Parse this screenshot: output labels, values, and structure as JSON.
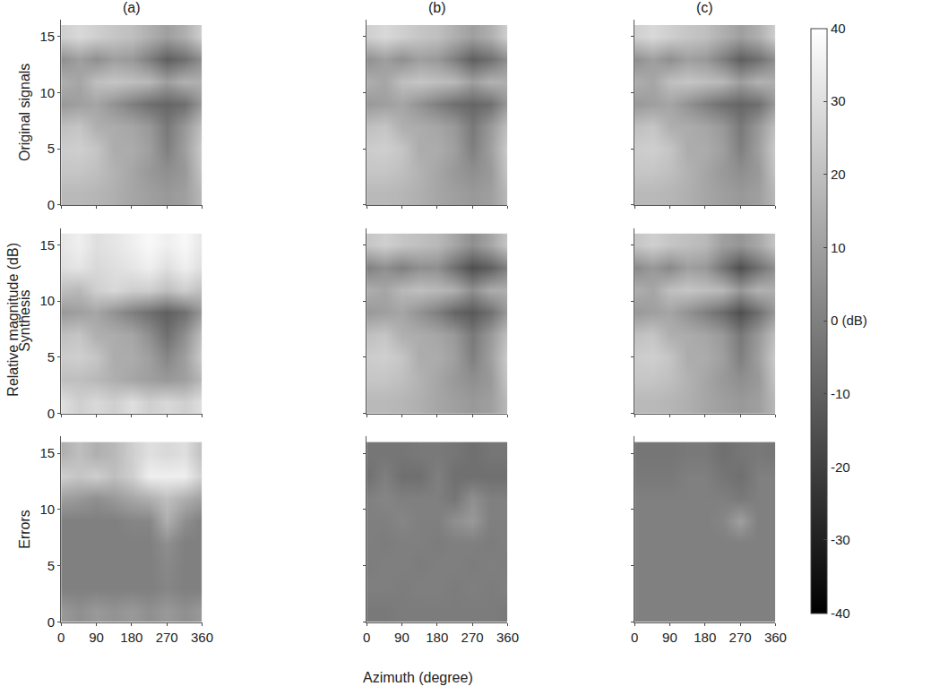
{
  "chart_data": {
    "type": "heatmap",
    "x_label": "Azimuth (degree)",
    "y_label": "Relative magnitude (dB)",
    "columns": [
      "(a)",
      "(b)",
      "(c)"
    ],
    "rows": [
      "Original signals",
      "Synthesis",
      "Errors"
    ],
    "color": "gray",
    "x": [
      0,
      45,
      90,
      135,
      180,
      225,
      270,
      315,
      360
    ],
    "y": [
      1,
      3,
      5,
      7,
      9,
      11,
      13,
      15
    ],
    "xlim": [
      0,
      360
    ],
    "xticks": [
      0,
      90,
      180,
      270,
      360
    ],
    "ylim": [
      0,
      16.5
    ],
    "yticks": [
      0,
      5,
      10,
      15
    ],
    "colorbar_range": [
      -40,
      40
    ],
    "colorbar_ticks": [
      40,
      30,
      20,
      10,
      {
        "value": 0,
        "label": "0 (dB)"
      },
      -10,
      -20,
      -30,
      -40
    ],
    "panels": [
      [
        [
          [
            18,
            18,
            17,
            15,
            12,
            10,
            8,
            10,
            18
          ],
          [
            22,
            22,
            20,
            16,
            12,
            8,
            5,
            8,
            22
          ],
          [
            24,
            25,
            22,
            14,
            14,
            10,
            0,
            10,
            24
          ],
          [
            20,
            22,
            15,
            14,
            12,
            8,
            -2,
            8,
            20
          ],
          [
            8,
            10,
            12,
            6,
            0,
            -5,
            -8,
            -5,
            8
          ],
          [
            15,
            12,
            20,
            22,
            20,
            18,
            10,
            16,
            15
          ],
          [
            5,
            10,
            5,
            10,
            8,
            0,
            -10,
            -5,
            5
          ],
          [
            25,
            28,
            25,
            22,
            20,
            15,
            10,
            15,
            25
          ]
        ],
        [
          [
            18,
            18,
            17,
            15,
            12,
            10,
            8,
            10,
            18
          ],
          [
            22,
            22,
            20,
            16,
            12,
            8,
            5,
            8,
            22
          ],
          [
            24,
            25,
            22,
            14,
            14,
            10,
            0,
            10,
            24
          ],
          [
            20,
            22,
            15,
            14,
            12,
            8,
            -2,
            8,
            20
          ],
          [
            8,
            10,
            12,
            6,
            0,
            -5,
            -8,
            -5,
            8
          ],
          [
            15,
            12,
            20,
            22,
            20,
            18,
            10,
            16,
            15
          ],
          [
            5,
            10,
            5,
            10,
            8,
            0,
            -10,
            -5,
            5
          ],
          [
            25,
            28,
            25,
            22,
            20,
            15,
            10,
            15,
            25
          ]
        ],
        [
          [
            18,
            18,
            17,
            15,
            12,
            10,
            8,
            10,
            18
          ],
          [
            22,
            22,
            20,
            16,
            12,
            8,
            5,
            8,
            22
          ],
          [
            24,
            25,
            22,
            14,
            14,
            10,
            0,
            10,
            24
          ],
          [
            20,
            22,
            15,
            14,
            12,
            8,
            -2,
            8,
            20
          ],
          [
            8,
            10,
            12,
            6,
            0,
            -5,
            -8,
            -5,
            8
          ],
          [
            15,
            12,
            20,
            22,
            20,
            18,
            10,
            16,
            15
          ],
          [
            5,
            10,
            5,
            10,
            8,
            0,
            -10,
            -5,
            5
          ],
          [
            25,
            28,
            25,
            22,
            20,
            15,
            10,
            15,
            25
          ]
        ]
      ],
      [
        [
          [
            30,
            25,
            28,
            25,
            30,
            25,
            28,
            25,
            30
          ],
          [
            20,
            20,
            18,
            15,
            12,
            10,
            8,
            10,
            18
          ],
          [
            24,
            25,
            22,
            14,
            14,
            10,
            2,
            10,
            24
          ],
          [
            20,
            22,
            15,
            14,
            12,
            5,
            -5,
            5,
            20
          ],
          [
            8,
            10,
            12,
            6,
            0,
            -5,
            -10,
            -5,
            8
          ],
          [
            20,
            18,
            25,
            28,
            25,
            25,
            20,
            25,
            20
          ],
          [
            30,
            32,
            28,
            30,
            32,
            35,
            30,
            35,
            30
          ],
          [
            32,
            35,
            30,
            32,
            35,
            38,
            35,
            38,
            32
          ]
        ],
        [
          [
            18,
            18,
            17,
            15,
            12,
            10,
            8,
            10,
            18
          ],
          [
            22,
            22,
            20,
            16,
            12,
            8,
            5,
            8,
            22
          ],
          [
            24,
            25,
            22,
            14,
            14,
            10,
            0,
            10,
            24
          ],
          [
            20,
            22,
            15,
            14,
            12,
            8,
            -2,
            8,
            20
          ],
          [
            8,
            10,
            12,
            6,
            0,
            -8,
            -12,
            -5,
            8
          ],
          [
            15,
            12,
            18,
            20,
            18,
            15,
            5,
            14,
            15
          ],
          [
            0,
            5,
            0,
            5,
            5,
            -5,
            -15,
            -10,
            0
          ],
          [
            22,
            25,
            22,
            20,
            18,
            12,
            5,
            12,
            22
          ]
        ],
        [
          [
            18,
            18,
            17,
            15,
            12,
            10,
            8,
            10,
            18
          ],
          [
            22,
            22,
            20,
            16,
            12,
            8,
            5,
            8,
            22
          ],
          [
            24,
            25,
            22,
            14,
            14,
            10,
            0,
            10,
            24
          ],
          [
            20,
            22,
            15,
            14,
            12,
            8,
            -2,
            8,
            20
          ],
          [
            8,
            10,
            12,
            6,
            0,
            -6,
            -15,
            -5,
            8
          ],
          [
            15,
            12,
            20,
            22,
            20,
            18,
            8,
            16,
            15
          ],
          [
            3,
            8,
            3,
            10,
            8,
            -3,
            -15,
            -5,
            5
          ],
          [
            22,
            25,
            22,
            20,
            18,
            10,
            7,
            13,
            22
          ]
        ]
      ],
      [
        [
          [
            8,
            5,
            8,
            6,
            8,
            5,
            8,
            5,
            8
          ],
          [
            0,
            0,
            0,
            0,
            0,
            0,
            2,
            0,
            0
          ],
          [
            0,
            0,
            0,
            0,
            0,
            0,
            3,
            0,
            0
          ],
          [
            0,
            0,
            0,
            0,
            0,
            0,
            5,
            0,
            0
          ],
          [
            0,
            0,
            0,
            0,
            2,
            2,
            15,
            5,
            0
          ],
          [
            10,
            8,
            5,
            8,
            12,
            15,
            20,
            15,
            10
          ],
          [
            25,
            22,
            25,
            20,
            25,
            35,
            35,
            35,
            25
          ],
          [
            15,
            20,
            15,
            18,
            25,
            30,
            28,
            30,
            20
          ]
        ],
        [
          [
            -2,
            -2,
            -1,
            -1,
            -1,
            -1,
            -1,
            -1,
            -2
          ],
          [
            0,
            0,
            -1,
            0,
            0,
            -1,
            0,
            -1,
            0
          ],
          [
            -1,
            0,
            0,
            -1,
            0,
            0,
            -1,
            0,
            -1
          ],
          [
            0,
            -1,
            0,
            0,
            -1,
            0,
            0,
            -1,
            0
          ],
          [
            0,
            0,
            2,
            0,
            0,
            5,
            8,
            0,
            0
          ],
          [
            0,
            2,
            0,
            0,
            0,
            -3,
            5,
            0,
            0
          ],
          [
            -5,
            0,
            -5,
            -5,
            0,
            -5,
            -5,
            -5,
            -5
          ],
          [
            -3,
            -3,
            -3,
            -2,
            -2,
            -3,
            -5,
            -3,
            -3
          ]
        ],
        [
          [
            0,
            0,
            0,
            0,
            0,
            0,
            0,
            0,
            0
          ],
          [
            0,
            0,
            0,
            0,
            0,
            0,
            0,
            0,
            0
          ],
          [
            0,
            0,
            0,
            0,
            0,
            0,
            0,
            0,
            0
          ],
          [
            0,
            0,
            0,
            0,
            0,
            0,
            0,
            0,
            0
          ],
          [
            0,
            0,
            0,
            0,
            0,
            2,
            10,
            0,
            0
          ],
          [
            0,
            0,
            0,
            0,
            0,
            0,
            -2,
            0,
            0
          ],
          [
            -2,
            -2,
            -2,
            0,
            0,
            -3,
            -5,
            0,
            0
          ],
          [
            -3,
            -3,
            -3,
            -2,
            -2,
            -5,
            -3,
            -2,
            -3
          ]
        ]
      ]
    ]
  }
}
